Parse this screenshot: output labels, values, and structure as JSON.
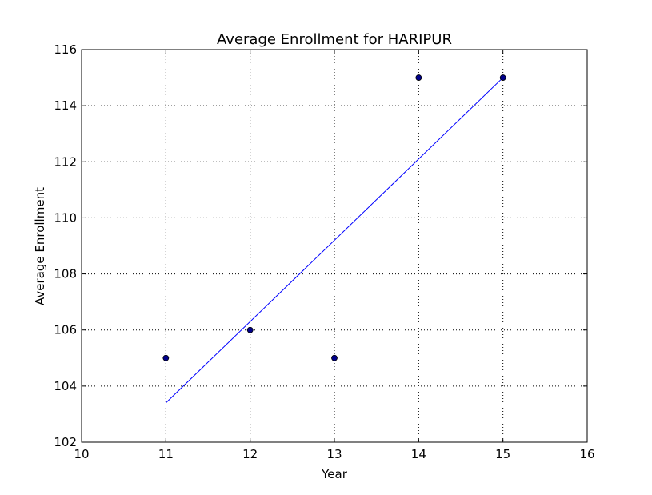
{
  "chart_data": {
    "type": "scatter",
    "title": "Average Enrollment for HARIPUR",
    "xlabel": "Year",
    "ylabel": "Average Enrollment",
    "xlim": [
      10,
      16
    ],
    "ylim": [
      102,
      116
    ],
    "x_ticks": [
      10,
      11,
      12,
      13,
      14,
      15,
      16
    ],
    "y_ticks": [
      102,
      104,
      106,
      108,
      110,
      112,
      114,
      116
    ],
    "grid": true,
    "legend": "none",
    "series": [
      {
        "kind": "scatter",
        "x": [
          11,
          12,
          13,
          14,
          15
        ],
        "y": [
          105,
          106,
          105,
          115,
          115
        ],
        "color": "#00008b"
      },
      {
        "kind": "line",
        "x": [
          11,
          15
        ],
        "y": [
          103.4,
          115
        ],
        "color": "#0000ff"
      }
    ]
  }
}
